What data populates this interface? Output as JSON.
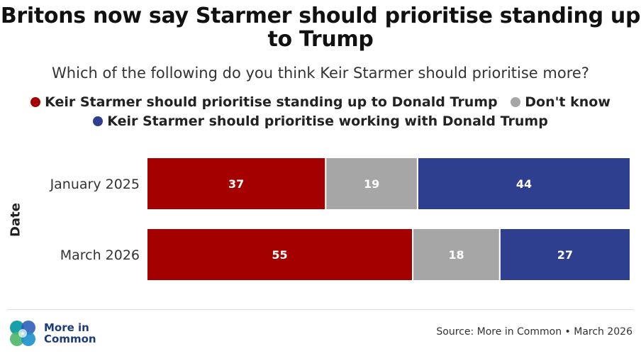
{
  "title": "Britons now say Starmer should prioritise standing up to Trump",
  "subtitle": "Which of the following do you think Keir Starmer should prioritise more?",
  "legend": [
    {
      "label": "Keir Starmer should prioritise standing up to Donald Trump",
      "color": "#a50000"
    },
    {
      "label": "Don't know",
      "color": "#a6a6a6"
    },
    {
      "label": "Keir Starmer should prioritise working with Donald Trump",
      "color": "#2f3f8f"
    }
  ],
  "source": "Source: More in Common • March 2026",
  "logo_text": "More in Common",
  "logo_icon": "more-in-common-logo",
  "chart_data": {
    "type": "bar",
    "orientation": "horizontal",
    "stacked": true,
    "ylabel": "Date",
    "categories": [
      "January 2025",
      "March 2026"
    ],
    "series": [
      {
        "name": "Keir Starmer should prioritise standing up to Donald Trump",
        "values": [
          37,
          55
        ],
        "color": "#a50000"
      },
      {
        "name": "Don't know",
        "values": [
          19,
          18
        ],
        "color": "#a6a6a6"
      },
      {
        "name": "Keir Starmer should prioritise working with Donald Trump",
        "values": [
          44,
          27
        ],
        "color": "#2f3f8f"
      }
    ],
    "xlim": [
      0,
      100
    ],
    "grid": false,
    "legend_position": "top"
  }
}
